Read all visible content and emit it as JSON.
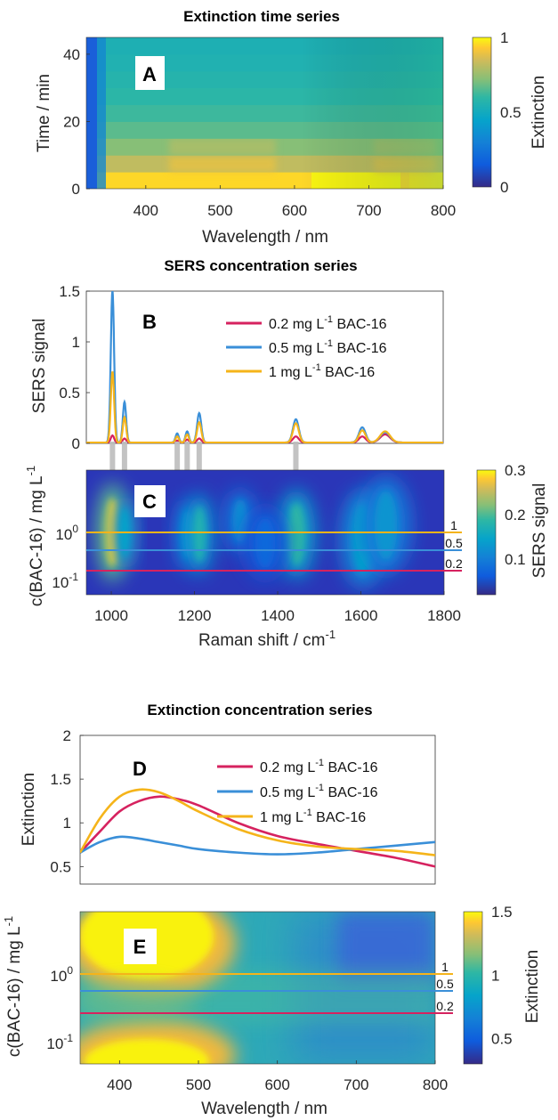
{
  "chart_data": [
    {
      "panel": "A",
      "type": "heatmap",
      "title": "Extinction time series",
      "xlabel": "Wavelength / nm",
      "ylabel": "Time / min",
      "xlim": [
        320,
        800
      ],
      "ylim": [
        0,
        45
      ],
      "x_ticks": [
        "400",
        "500",
        "600",
        "700",
        "800"
      ],
      "y_ticks": [
        "0",
        "20",
        "40"
      ],
      "colorbar": {
        "label": "Extinction",
        "ticks": [
          "0",
          "0.5",
          "1"
        ],
        "range": [
          0,
          1
        ]
      },
      "rows": [
        {
          "time": 0,
          "extinction": 0.95
        },
        {
          "time": 5,
          "extinction": 0.82
        },
        {
          "time": 10,
          "extinction": 0.72
        },
        {
          "time": 15,
          "extinction": 0.66
        },
        {
          "time": 20,
          "extinction": 0.62
        },
        {
          "time": 25,
          "extinction": 0.59
        },
        {
          "time": 30,
          "extinction": 0.57
        },
        {
          "time": 35,
          "extinction": 0.55
        },
        {
          "time": 40,
          "extinction": 0.54
        }
      ]
    },
    {
      "panel": "B",
      "type": "line",
      "title": "SERS concentration series",
      "xlabel": "",
      "ylabel": "SERS signal",
      "xlim": [
        940,
        1800
      ],
      "ylim": [
        0,
        1.5
      ],
      "y_ticks": [
        "0",
        "0.5",
        "1",
        "1.5"
      ],
      "legend": {
        "placement": "top-right"
      },
      "peaks": [
        1003,
        1032,
        1159,
        1183,
        1212,
        1445,
        1605,
        1660
      ],
      "series": [
        {
          "name": "0.2 mg L-1 BAC-16",
          "color": "#d6225f",
          "peak_heights": [
            0.07,
            0.04,
            0.02,
            0.03,
            0.04,
            0.06,
            0.06,
            0.08
          ]
        },
        {
          "name": "0.5 mg L-1 BAC-16",
          "color": "#3a8fd8",
          "peak_heights": [
            1.5,
            0.4,
            0.09,
            0.11,
            0.29,
            0.23,
            0.15,
            0.1
          ]
        },
        {
          "name": "1 mg L-1 BAC-16",
          "color": "#f5b41a",
          "peak_heights": [
            0.7,
            0.25,
            0.06,
            0.08,
            0.2,
            0.19,
            0.12,
            0.11
          ]
        }
      ]
    },
    {
      "panel": "C",
      "type": "heatmap",
      "xlabel": "Raman shift / cm-1",
      "ylabel": "c(BAC-16) / mg L-1",
      "xlim": [
        940,
        1800
      ],
      "y_scale": "log",
      "x_ticks": [
        "1000",
        "1200",
        "1400",
        "1600",
        "1800"
      ],
      "y_ticks": [
        "10^0",
        "10^-1"
      ],
      "colorbar": {
        "label": "SERS signal",
        "ticks": [
          "0.1",
          "0.2",
          "0.3"
        ],
        "range": [
          0.02,
          0.3
        ]
      },
      "reference_lines": [
        {
          "label": "1",
          "value": 1,
          "color": "#f5b41a"
        },
        {
          "label": "0.5",
          "value": 0.5,
          "color": "#3a8fd8"
        },
        {
          "label": "0.2",
          "value": 0.2,
          "color": "#d6225f"
        }
      ]
    },
    {
      "panel": "D",
      "type": "line",
      "title": "Extinction concentration series",
      "xlabel": "",
      "ylabel": "Extinction",
      "xlim": [
        350,
        800
      ],
      "ylim": [
        0.3,
        2
      ],
      "y_ticks": [
        "0.5",
        "1",
        "1.5",
        "2"
      ],
      "legend": {
        "placement": "top-right"
      },
      "x": [
        350,
        375,
        400,
        425,
        450,
        475,
        500,
        550,
        600,
        650,
        700,
        750,
        800
      ],
      "series": [
        {
          "name": "0.2 mg L-1 BAC-16",
          "color": "#d6225f",
          "values": [
            0.66,
            0.9,
            1.13,
            1.25,
            1.3,
            1.27,
            1.2,
            1.0,
            0.85,
            0.76,
            0.68,
            0.6,
            0.5
          ]
        },
        {
          "name": "0.5 mg L-1 BAC-16",
          "color": "#3a8fd8",
          "values": [
            0.66,
            0.78,
            0.84,
            0.82,
            0.78,
            0.74,
            0.7,
            0.66,
            0.64,
            0.66,
            0.7,
            0.74,
            0.78
          ]
        },
        {
          "name": "1 mg L-1 BAC-16",
          "color": "#f5b41a",
          "values": [
            0.66,
            1.05,
            1.3,
            1.38,
            1.35,
            1.25,
            1.13,
            0.93,
            0.8,
            0.73,
            0.7,
            0.68,
            0.63
          ]
        }
      ]
    },
    {
      "panel": "E",
      "type": "heatmap",
      "xlabel": "Wavelength / nm",
      "ylabel": "c(BAC-16) / mg L-1",
      "xlim": [
        350,
        800
      ],
      "y_scale": "log",
      "x_ticks": [
        "400",
        "500",
        "600",
        "700",
        "800"
      ],
      "y_ticks": [
        "10^0",
        "10^-1"
      ],
      "colorbar": {
        "label": "Extinction",
        "ticks": [
          "0.5",
          "1",
          "1.5"
        ],
        "range": [
          0.3,
          1.5
        ]
      },
      "reference_lines": [
        {
          "label": "1",
          "value": 1,
          "color": "#f5b41a"
        },
        {
          "label": "0.5",
          "value": 0.5,
          "color": "#3a8fd8"
        },
        {
          "label": "0.2",
          "value": 0.2,
          "color": "#d6225f"
        }
      ]
    }
  ],
  "titles": {
    "a": "Extinction time series",
    "b": "SERS concentration series",
    "d": "Extinction concentration series"
  },
  "panel_letters": {
    "a": "A",
    "b": "B",
    "c": "C",
    "d": "D",
    "e": "E"
  },
  "axes": {
    "a_x": "Wavelength / nm",
    "a_y": "Time / min",
    "a_cb": "Extinction",
    "b_y": "SERS signal",
    "c_x_prefix": "Raman shift / cm",
    "c_x_sup": "-1",
    "c_y_prefix": "c(BAC-16) / mg L",
    "c_y_sup": "-1",
    "c_cb": "SERS signal",
    "d_y": "Extinction",
    "e_x": "Wavelength / nm",
    "e_y_prefix": "c(BAC-16) / mg L",
    "e_y_sup": "-1",
    "e_cb": "Extinction"
  },
  "ticks": {
    "a_x": [
      "400",
      "500",
      "600",
      "700",
      "800"
    ],
    "a_y": [
      "0",
      "20",
      "40"
    ],
    "a_cb": [
      "0",
      "0.5",
      "1"
    ],
    "b_y": [
      "0",
      "0.5",
      "1",
      "1.5"
    ],
    "c_x": [
      "1000",
      "1200",
      "1400",
      "1600",
      "1800"
    ],
    "c_cb": [
      "0.1",
      "0.2",
      "0.3"
    ],
    "d_y": [
      "0.5",
      "1",
      "1.5",
      "2"
    ],
    "e_x": [
      "400",
      "500",
      "600",
      "700",
      "800"
    ],
    "e_cb": [
      "0.5",
      "1",
      "1.5"
    ],
    "log_base": "10",
    "log_exp_0": "0",
    "log_exp_m1": "-1"
  },
  "legend": {
    "prefix_02": "0.2 mg L",
    "prefix_05": "0.5 mg L",
    "prefix_1": "1 mg L",
    "sup": "-1",
    "suffix": " BAC-16"
  },
  "conc_labels": [
    "1",
    "0.5",
    "0.2"
  ],
  "colors": {
    "red": "#d6225f",
    "blue": "#3a8fd8",
    "yellow": "#f5b41a",
    "grey_marker": "#bdbdbd"
  }
}
